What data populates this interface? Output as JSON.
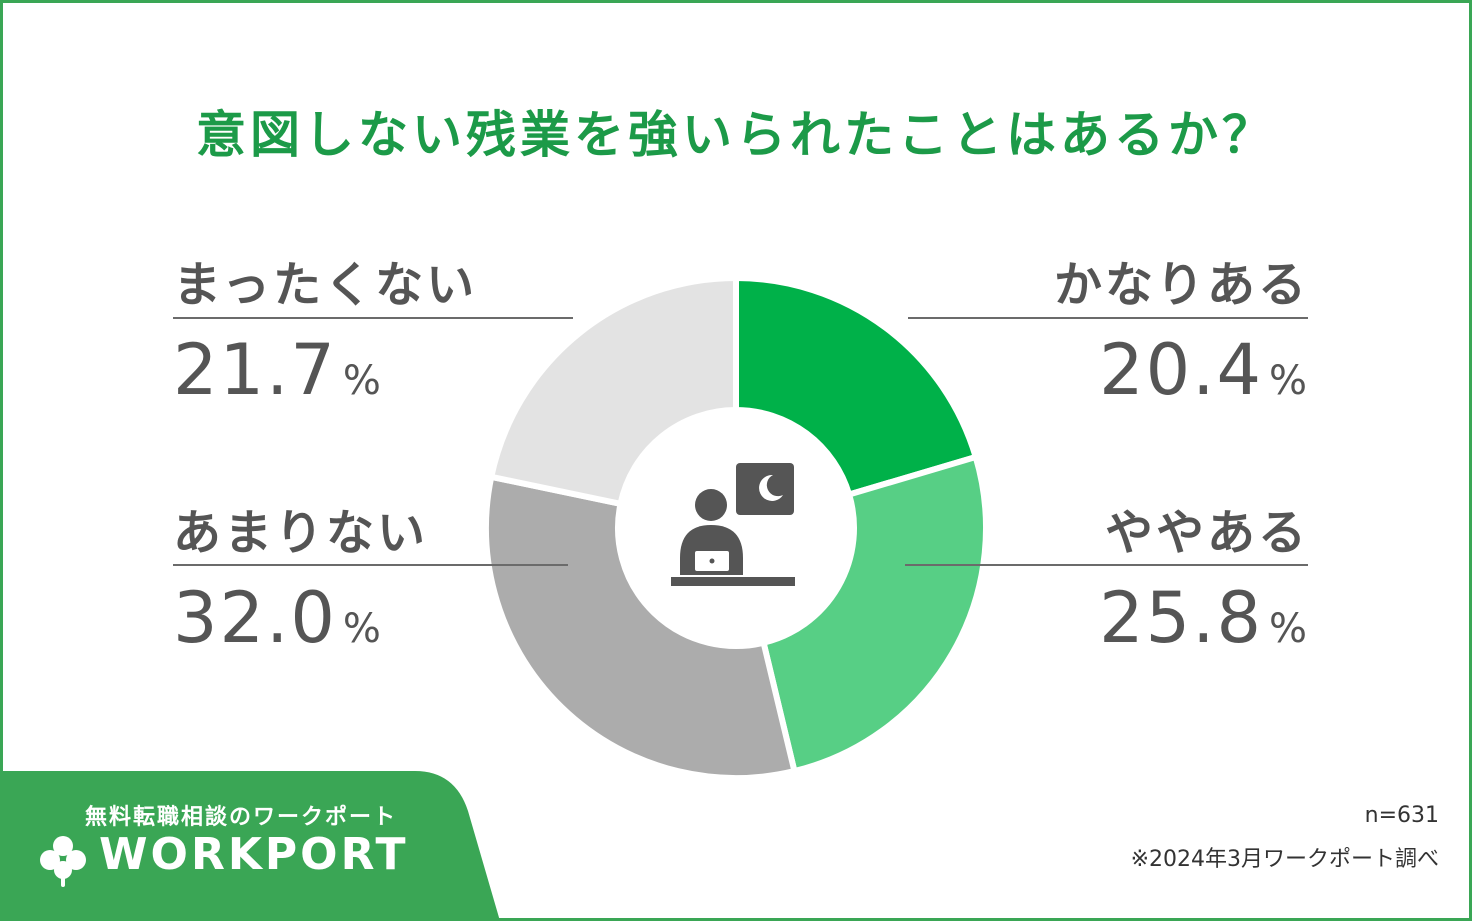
{
  "chart_data": {
    "type": "pie",
    "title": "意図しない残業を強いられたことはあるか？",
    "categories": [
      "かなりある",
      "ややある",
      "あまりない",
      "まったくない"
    ],
    "values": [
      20.4,
      25.8,
      32.0,
      21.7
    ],
    "value_labels": [
      "20.4",
      "25.8",
      "32.0",
      "21.7"
    ],
    "unit": "%",
    "colors": [
      "#00b149",
      "#57cf85",
      "#acacac",
      "#e3e3e3"
    ],
    "donut": true,
    "center_icon": "person-working-at-night-icon"
  },
  "footer": {
    "brand_tagline": "無料転職相談のワークポート",
    "brand_name": "WORKPORT",
    "sample_size": "n=631",
    "source": "※2024年3月ワークポート調べ"
  },
  "colors": {
    "frame": "#3aa655",
    "title": "#1c9a48",
    "text": "#555555"
  }
}
